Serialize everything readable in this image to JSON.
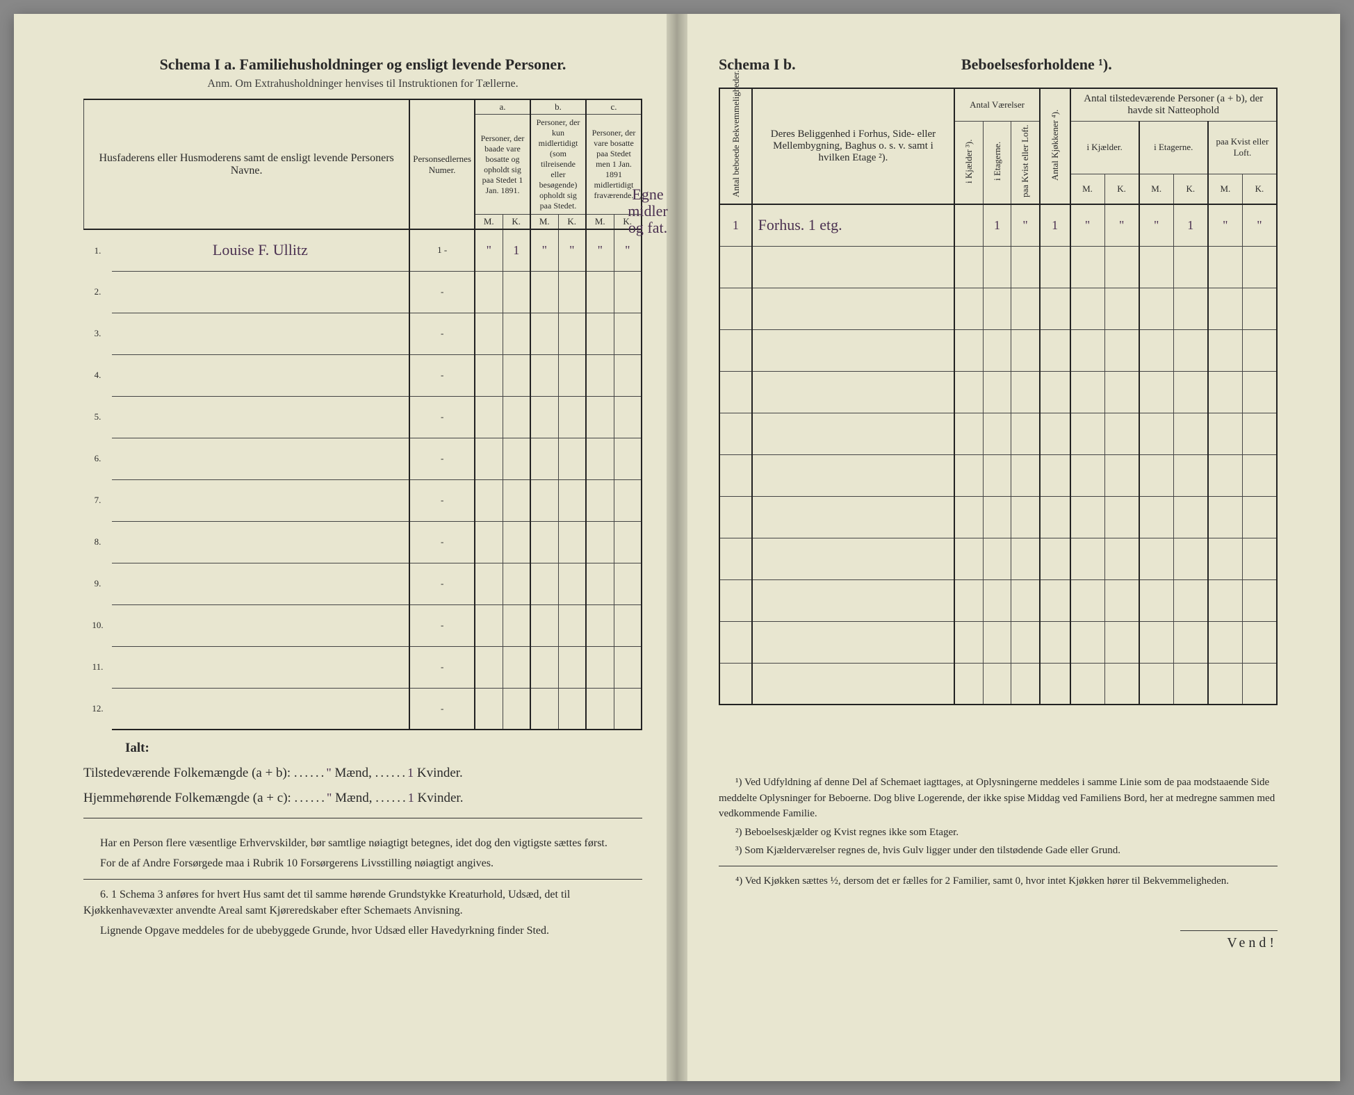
{
  "left": {
    "title": "Schema I a.   Familiehusholdninger og ensligt levende Personer.",
    "subtitle": "Anm. Om Extrahusholdninger henvises til Instruktionen for Tællerne.",
    "headers": {
      "c1": "Husfaderens eller Husmoderens samt de ensligt levende Personers Navne.",
      "c2": "Personsedlernes Numer.",
      "grp_a_top": "a.",
      "grp_a": "Personer, der baade vare bosatte og opholdt sig paa Stedet 1 Jan. 1891.",
      "grp_b_top": "b.",
      "grp_b": "Personer, der kun midlertidigt (som tilreisende eller besøgende) opholdt sig paa Stedet.",
      "grp_c_top": "c.",
      "grp_c": "Personer, der vare bosatte paa Stedet men 1 Jan. 1891 midlertidigt fraværende.",
      "m": "M.",
      "k": "K."
    },
    "rows": [
      {
        "num": "1.",
        "name": "Louise F. Ullitz",
        "p": "1 -",
        "a_m": "\"",
        "a_k": "1",
        "b_m": "\"",
        "b_k": "\"",
        "c_m": "\"",
        "c_k": "\""
      },
      {
        "num": "2.",
        "name": "",
        "p": "-",
        "a_m": "",
        "a_k": "",
        "b_m": "",
        "b_k": "",
        "c_m": "",
        "c_k": ""
      },
      {
        "num": "3.",
        "name": "",
        "p": "-",
        "a_m": "",
        "a_k": "",
        "b_m": "",
        "b_k": "",
        "c_m": "",
        "c_k": ""
      },
      {
        "num": "4.",
        "name": "",
        "p": "-",
        "a_m": "",
        "a_k": "",
        "b_m": "",
        "b_k": "",
        "c_m": "",
        "c_k": ""
      },
      {
        "num": "5.",
        "name": "",
        "p": "-",
        "a_m": "",
        "a_k": "",
        "b_m": "",
        "b_k": "",
        "c_m": "",
        "c_k": ""
      },
      {
        "num": "6.",
        "name": "",
        "p": "-",
        "a_m": "",
        "a_k": "",
        "b_m": "",
        "b_k": "",
        "c_m": "",
        "c_k": ""
      },
      {
        "num": "7.",
        "name": "",
        "p": "-",
        "a_m": "",
        "a_k": "",
        "b_m": "",
        "b_k": "",
        "c_m": "",
        "c_k": ""
      },
      {
        "num": "8.",
        "name": "",
        "p": "-",
        "a_m": "",
        "a_k": "",
        "b_m": "",
        "b_k": "",
        "c_m": "",
        "c_k": ""
      },
      {
        "num": "9.",
        "name": "",
        "p": "-",
        "a_m": "",
        "a_k": "",
        "b_m": "",
        "b_k": "",
        "c_m": "",
        "c_k": ""
      },
      {
        "num": "10.",
        "name": "",
        "p": "-",
        "a_m": "",
        "a_k": "",
        "b_m": "",
        "b_k": "",
        "c_m": "",
        "c_k": ""
      },
      {
        "num": "11.",
        "name": "",
        "p": "-",
        "a_m": "",
        "a_k": "",
        "b_m": "",
        "b_k": "",
        "c_m": "",
        "c_k": ""
      },
      {
        "num": "12.",
        "name": "",
        "p": "-",
        "a_m": "",
        "a_k": "",
        "b_m": "",
        "b_k": "",
        "c_m": "",
        "c_k": ""
      }
    ],
    "summary": {
      "ialt": "Ialt:",
      "line1_a": "Tilstedeværende Folkemængde (a + b): ",
      "line1_m": "\"",
      "line1_mid": " Mænd, ",
      "line1_k": "1",
      "line1_end": " Kvinder.",
      "line2_a": "Hjemmehørende Folkemængde (a + c): ",
      "line2_m": "\"",
      "line2_mid": " Mænd, ",
      "line2_k": "1",
      "line2_end": " Kvinder."
    },
    "notes": {
      "p1": "Har en Person flere væsentlige Erhvervskilder, bør samtlige nøiagtigt betegnes, idet dog den vigtigste sættes først.",
      "p2": "For de af Andre Forsørgede maa i Rubrik 10 Forsørgerens Livsstilling nøiagtigt angives.",
      "p3": "6. 1 Schema 3 anføres for hvert Hus samt det til samme hørende Grundstykke Kreaturhold, Udsæd, det til Kjøkkenhavevæxter anvendte Areal samt Kjøreredskaber efter Schemaets Anvisning.",
      "p4": "Lignende Opgave meddeles for de ubebyggede Grunde, hvor Udsæd eller Havedyrkning finder Sted."
    },
    "margin_note": "Egne midler og\nfat."
  },
  "right": {
    "title_left": "Schema I b.",
    "title_right": "Beboelsesforholdene ¹).",
    "headers": {
      "c1": "Antal beboede Bekvemmeligheder.",
      "c2": "Deres Beliggenhed i Forhus, Side- eller Mellembygning, Baghus o. s. v. samt i hvilken Etage ²).",
      "grp_v": "Antal Værelser",
      "v1": "i Kjælder ³).",
      "v2": "i Etagerne.",
      "v3": "paa Kvist eller Loft.",
      "c_kj": "Antal Kjøkkener ⁴).",
      "grp_p": "Antal tilstedeværende Personer (a + b), der havde sit Natteophold",
      "p1": "i Kjælder.",
      "p2": "i Etagerne.",
      "p3": "paa Kvist eller Loft.",
      "m": "M.",
      "k": "K."
    },
    "rows": [
      {
        "c1": "1",
        "c2": "Forhus. 1 etg.",
        "v1": "",
        "v2": "1",
        "v3": "\"",
        "kj": "1",
        "p1m": "\"",
        "p1k": "\"",
        "p2m": "\"",
        "p2k": "1",
        "p3m": "\"",
        "p3k": "\""
      },
      {
        "c1": "",
        "c2": "",
        "v1": "",
        "v2": "",
        "v3": "",
        "kj": "",
        "p1m": "",
        "p1k": "",
        "p2m": "",
        "p2k": "",
        "p3m": "",
        "p3k": ""
      },
      {
        "c1": "",
        "c2": "",
        "v1": "",
        "v2": "",
        "v3": "",
        "kj": "",
        "p1m": "",
        "p1k": "",
        "p2m": "",
        "p2k": "",
        "p3m": "",
        "p3k": ""
      },
      {
        "c1": "",
        "c2": "",
        "v1": "",
        "v2": "",
        "v3": "",
        "kj": "",
        "p1m": "",
        "p1k": "",
        "p2m": "",
        "p2k": "",
        "p3m": "",
        "p3k": ""
      },
      {
        "c1": "",
        "c2": "",
        "v1": "",
        "v2": "",
        "v3": "",
        "kj": "",
        "p1m": "",
        "p1k": "",
        "p2m": "",
        "p2k": "",
        "p3m": "",
        "p3k": ""
      },
      {
        "c1": "",
        "c2": "",
        "v1": "",
        "v2": "",
        "v3": "",
        "kj": "",
        "p1m": "",
        "p1k": "",
        "p2m": "",
        "p2k": "",
        "p3m": "",
        "p3k": ""
      },
      {
        "c1": "",
        "c2": "",
        "v1": "",
        "v2": "",
        "v3": "",
        "kj": "",
        "p1m": "",
        "p1k": "",
        "p2m": "",
        "p2k": "",
        "p3m": "",
        "p3k": ""
      },
      {
        "c1": "",
        "c2": "",
        "v1": "",
        "v2": "",
        "v3": "",
        "kj": "",
        "p1m": "",
        "p1k": "",
        "p2m": "",
        "p2k": "",
        "p3m": "",
        "p3k": ""
      },
      {
        "c1": "",
        "c2": "",
        "v1": "",
        "v2": "",
        "v3": "",
        "kj": "",
        "p1m": "",
        "p1k": "",
        "p2m": "",
        "p2k": "",
        "p3m": "",
        "p3k": ""
      },
      {
        "c1": "",
        "c2": "",
        "v1": "",
        "v2": "",
        "v3": "",
        "kj": "",
        "p1m": "",
        "p1k": "",
        "p2m": "",
        "p2k": "",
        "p3m": "",
        "p3k": ""
      },
      {
        "c1": "",
        "c2": "",
        "v1": "",
        "v2": "",
        "v3": "",
        "kj": "",
        "p1m": "",
        "p1k": "",
        "p2m": "",
        "p2k": "",
        "p3m": "",
        "p3k": ""
      },
      {
        "c1": "",
        "c2": "",
        "v1": "",
        "v2": "",
        "v3": "",
        "kj": "",
        "p1m": "",
        "p1k": "",
        "p2m": "",
        "p2k": "",
        "p3m": "",
        "p3k": ""
      }
    ],
    "footnotes": {
      "f1": "¹) Ved Udfyldning af denne Del af Schemaet iagttages, at Oplysningerne meddeles i samme Linie som de paa modstaaende Side meddelte Oplysninger for Beboerne. Dog blive Logerende, der ikke spise Middag ved Familiens Bord, her at medregne sammen med vedkommende Familie.",
      "f2": "²) Beboelseskjælder og Kvist regnes ikke som Etager.",
      "f3": "³) Som Kjælderværelser regnes de, hvis Gulv ligger under den tilstødende Gade eller Grund.",
      "f4": "⁴) Ved Kjøkken sættes ½, dersom det er fælles for 2 Familier, samt 0, hvor intet Kjøkken hører til Bekvemmeligheden."
    },
    "vend": "Vend!"
  },
  "colors": {
    "paper": "#e8e6d0",
    "ink": "#2a2a2a",
    "handwriting": "#4a3050",
    "border": "#444"
  }
}
